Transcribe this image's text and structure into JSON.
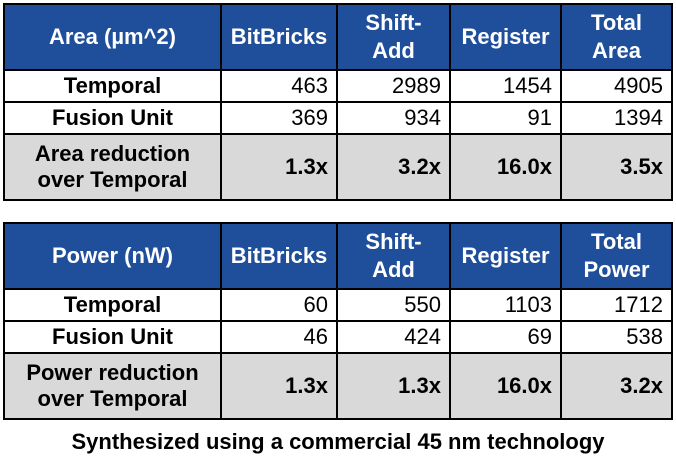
{
  "area_table": {
    "headers": [
      "Area (µm^2)",
      "BitBricks",
      "Shift-\nAdd",
      "Register",
      "Total\nArea"
    ],
    "rows": [
      {
        "label": "Temporal",
        "values": [
          "463",
          "2989",
          "1454",
          "4905"
        ]
      },
      {
        "label": "Fusion Unit",
        "values": [
          "369",
          "934",
          "91",
          "1394"
        ]
      },
      {
        "label": "Area reduction\nover Temporal",
        "values": [
          "1.3x",
          "3.2x",
          "16.0x",
          "3.5x"
        ]
      }
    ]
  },
  "power_table": {
    "headers": [
      "Power (nW)",
      "BitBricks",
      "Shift-\nAdd",
      "Register",
      "Total\nPower"
    ],
    "rows": [
      {
        "label": "Temporal",
        "values": [
          "60",
          "550",
          "1103",
          "1712"
        ]
      },
      {
        "label": "Fusion Unit",
        "values": [
          "46",
          "424",
          "69",
          "538"
        ]
      },
      {
        "label": "Power reduction\nover Temporal",
        "values": [
          "1.3x",
          "1.3x",
          "16.0x",
          "3.2x"
        ]
      }
    ]
  },
  "caption": "Synthesized using a commercial 45 nm technology",
  "colors": {
    "header_bg": "#1f4e9b",
    "header_text": "#ffffff",
    "reduction_bg": "#d9d9d9"
  }
}
